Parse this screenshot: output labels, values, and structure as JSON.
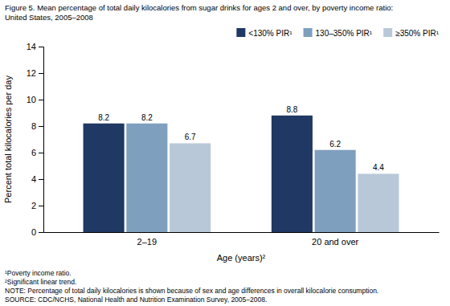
{
  "chart_data": {
    "type": "bar",
    "title": "Figure 5. Mean percentage of total daily kilocalories from sugar drinks for ages 2 and over, by poverty income ratio:",
    "subtitle": "United States, 2005–2008",
    "categories": [
      "2–19",
      "20 and over"
    ],
    "series": [
      {
        "name": "<130% PIR¹",
        "color": "#1f3864",
        "values": [
          8.2,
          8.8
        ]
      },
      {
        "name": "130–350% PIR¹",
        "color": "#7f9fbe",
        "values": [
          8.2,
          6.2
        ]
      },
      {
        "name": "≥350% PIR¹",
        "color": "#b8c8d8",
        "values": [
          6.7,
          4.4
        ]
      }
    ],
    "x_label": "Age (years)²",
    "y_label": "Percent total kilocalories per day",
    "ylim": [
      0,
      14
    ],
    "yticks": [
      0,
      2,
      4,
      6,
      8,
      10,
      12,
      14
    ],
    "annotations": [
      "¹Poverty income ratio.",
      "²Significant linear trend.",
      "NOTE: Percentage of total daily kilocalories is shown because of sex and age differences in overall kilocalorie consumption.",
      "SOURCE: CDC/NCHS, National Health and Nutrition Examination Survey, 2005–2008."
    ],
    "data_labels": true,
    "legend": "top-right",
    "grid": false
  }
}
